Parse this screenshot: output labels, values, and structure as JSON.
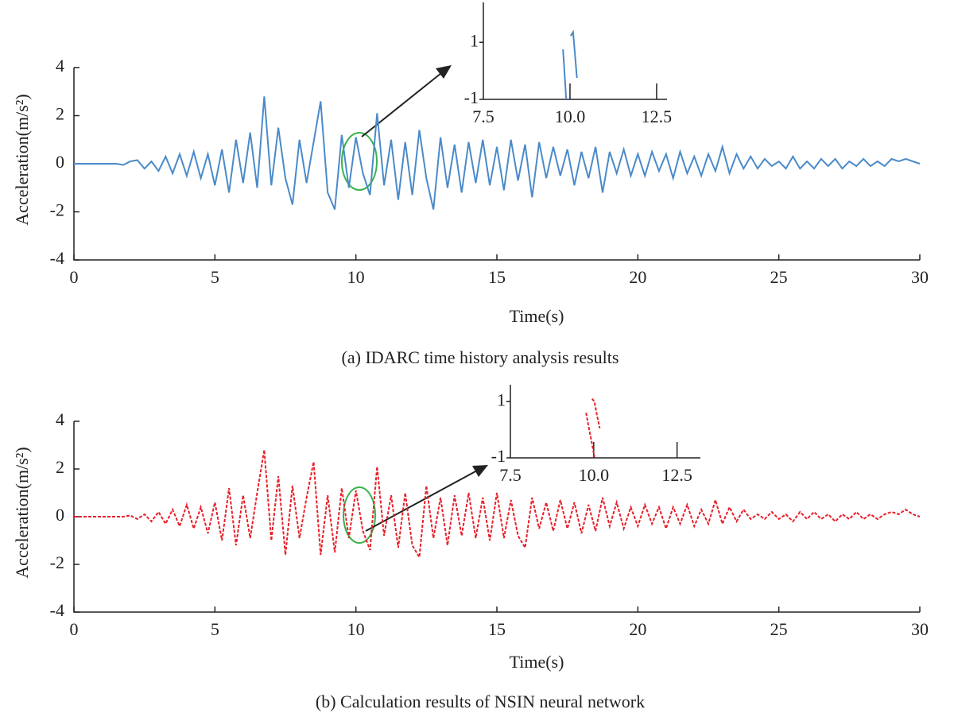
{
  "chart_data": [
    {
      "type": "line",
      "caption": "(a) IDARC time history analysis results",
      "xlabel": "Time(s)",
      "ylabel": "Acceleration(m/s²)",
      "color": "#4a8ac9",
      "line_style": "solid",
      "xlim": [
        0,
        30
      ],
      "ylim": [
        -4,
        4
      ],
      "xticks": [
        0,
        5,
        10,
        15,
        20,
        25,
        30
      ],
      "yticks": [
        4,
        2,
        0,
        -2,
        -4
      ],
      "x": [
        0,
        0.25,
        0.5,
        0.75,
        1,
        1.25,
        1.5,
        1.75,
        2,
        2.25,
        2.5,
        2.75,
        3,
        3.25,
        3.5,
        3.75,
        4,
        4.25,
        4.5,
        4.75,
        5,
        5.25,
        5.5,
        5.75,
        6,
        6.25,
        6.5,
        6.75,
        7,
        7.25,
        7.5,
        7.75,
        8,
        8.25,
        8.5,
        8.75,
        9,
        9.25,
        9.5,
        9.75,
        10,
        10.25,
        10.5,
        10.75,
        11,
        11.25,
        11.5,
        11.75,
        12,
        12.25,
        12.5,
        12.75,
        13,
        13.25,
        13.5,
        13.75,
        14,
        14.25,
        14.5,
        14.75,
        15,
        15.25,
        15.5,
        15.75,
        16,
        16.25,
        16.5,
        16.75,
        17,
        17.25,
        17.5,
        17.75,
        18,
        18.25,
        18.5,
        18.75,
        19,
        19.25,
        19.5,
        19.75,
        20,
        20.25,
        20.5,
        20.75,
        21,
        21.25,
        21.5,
        21.75,
        22,
        22.25,
        22.5,
        22.75,
        23,
        23.25,
        23.5,
        23.75,
        24,
        24.25,
        24.5,
        24.75,
        25,
        25.25,
        25.5,
        25.75,
        26,
        26.25,
        26.5,
        26.75,
        27,
        27.25,
        27.5,
        27.75,
        28,
        28.25,
        28.5,
        28.75,
        29,
        29.25,
        29.5,
        29.75,
        30
      ],
      "values": [
        0,
        0,
        0,
        0,
        0,
        0,
        0,
        -0.05,
        0.1,
        0.15,
        -0.2,
        0.1,
        -0.3,
        0.3,
        -0.4,
        0.4,
        -0.5,
        0.5,
        -0.6,
        0.4,
        -0.9,
        0.6,
        -1.2,
        1.0,
        -0.8,
        1.3,
        -1.0,
        2.8,
        -0.9,
        1.5,
        -0.6,
        -1.7,
        1.0,
        -0.8,
        0.9,
        2.6,
        -1.2,
        -1.9,
        1.2,
        -1.0,
        1.1,
        -0.4,
        -1.3,
        2.1,
        -0.9,
        1.0,
        -1.5,
        0.9,
        -1.3,
        1.4,
        -0.6,
        -1.9,
        1.1,
        -1.0,
        0.8,
        -1.2,
        0.9,
        -0.8,
        1.0,
        -0.9,
        0.7,
        -1.1,
        1.0,
        -0.7,
        0.8,
        -1.4,
        0.9,
        -0.6,
        0.7,
        -0.5,
        0.6,
        -0.9,
        0.5,
        -0.6,
        0.7,
        -1.2,
        0.5,
        -0.4,
        0.6,
        -0.5,
        0.4,
        -0.5,
        0.5,
        -0.3,
        0.4,
        -0.6,
        0.5,
        -0.4,
        0.3,
        -0.5,
        0.4,
        -0.3,
        0.7,
        -0.4,
        0.4,
        -0.2,
        0.3,
        -0.2,
        0.2,
        -0.1,
        0.1,
        -0.2,
        0.3,
        -0.2,
        0.1,
        -0.2,
        0.2,
        -0.1,
        0.2,
        -0.2,
        0.1,
        -0.1,
        0.2,
        -0.1,
        0.1,
        -0.1,
        0.2,
        0.1,
        0.2,
        0.1,
        0
      ]
    },
    {
      "type": "line",
      "color": "#4a8ac9",
      "line_style": "solid",
      "xlim": [
        7.5,
        12.8
      ],
      "ylim": [
        -1,
        2.4
      ],
      "xticks": [
        7.5,
        {
          "value": 10,
          "label": "10.0"
        },
        12.5
      ],
      "yticks": [
        1,
        -1
      ],
      "x": [
        9.8,
        9.89,
        null,
        10.02,
        10.09,
        10.2
      ],
      "values": [
        0.75,
        -1,
        null,
        1.22,
        1.36,
        -0.25
      ]
    },
    {
      "type": "line",
      "caption": "(b) Calculation results of NSIN neural network",
      "xlabel": "Time(s)",
      "ylabel": "Acceleration(m/s²)",
      "color": "#e8202a",
      "line_style": "dashed",
      "xlim": [
        0,
        30
      ],
      "ylim": [
        -4,
        4
      ],
      "xticks": [
        0,
        5,
        10,
        15,
        20,
        25,
        30
      ],
      "yticks": [
        4,
        2,
        0,
        -2,
        -4
      ],
      "x": [
        0,
        0.25,
        0.5,
        0.75,
        1,
        1.25,
        1.5,
        1.75,
        2,
        2.25,
        2.5,
        2.75,
        3,
        3.25,
        3.5,
        3.75,
        4,
        4.25,
        4.5,
        4.75,
        5,
        5.25,
        5.5,
        5.75,
        6,
        6.25,
        6.5,
        6.75,
        7,
        7.25,
        7.5,
        7.75,
        8,
        8.25,
        8.5,
        8.75,
        9,
        9.25,
        9.5,
        9.75,
        10,
        10.25,
        10.5,
        10.75,
        11,
        11.25,
        11.5,
        11.75,
        12,
        12.25,
        12.5,
        12.75,
        13,
        13.25,
        13.5,
        13.75,
        14,
        14.25,
        14.5,
        14.75,
        15,
        15.25,
        15.5,
        15.75,
        16,
        16.25,
        16.5,
        16.75,
        17,
        17.25,
        17.5,
        17.75,
        18,
        18.25,
        18.5,
        18.75,
        19,
        19.25,
        19.5,
        19.75,
        20,
        20.25,
        20.5,
        20.75,
        21,
        21.25,
        21.5,
        21.75,
        22,
        22.25,
        22.5,
        22.75,
        23,
        23.25,
        23.5,
        23.75,
        24,
        24.25,
        24.5,
        24.75,
        25,
        25.25,
        25.5,
        25.75,
        26,
        26.25,
        26.5,
        26.75,
        27,
        27.25,
        27.5,
        27.75,
        28,
        28.25,
        28.5,
        28.75,
        29,
        29.25,
        29.5,
        29.75,
        30
      ],
      "values": [
        0,
        0,
        0,
        0,
        0,
        0,
        0,
        0,
        0.05,
        -0.1,
        0.1,
        -0.2,
        0.2,
        -0.3,
        0.3,
        -0.4,
        0.5,
        -0.5,
        0.4,
        -0.7,
        0.6,
        -1.0,
        1.2,
        -1.2,
        0.9,
        -0.9,
        1.0,
        2.8,
        -1.0,
        1.7,
        -1.6,
        1.3,
        -0.9,
        0.8,
        2.3,
        -1.6,
        0.9,
        -1.5,
        1.2,
        -0.9,
        1.1,
        -0.6,
        -1.4,
        2.1,
        -0.8,
        0.9,
        -1.3,
        1.0,
        -1.2,
        -1.7,
        1.3,
        -0.9,
        0.8,
        -1.2,
        0.9,
        -0.8,
        1.0,
        -0.9,
        0.8,
        -1.0,
        1.0,
        -0.9,
        0.7,
        -0.8,
        -1.3,
        0.8,
        -0.5,
        0.6,
        -0.6,
        0.7,
        -0.5,
        0.6,
        -0.7,
        0.5,
        -0.6,
        0.8,
        -0.4,
        0.6,
        -0.5,
        0.4,
        -0.4,
        0.5,
        -0.3,
        0.4,
        -0.5,
        0.4,
        -0.3,
        0.5,
        -0.4,
        0.3,
        -0.3,
        0.7,
        -0.3,
        0.4,
        -0.2,
        0.3,
        -0.1,
        0.1,
        -0.1,
        0.2,
        -0.1,
        0.1,
        -0.2,
        0.2,
        -0.1,
        0.2,
        -0.1,
        0.1,
        -0.2,
        0.1,
        -0.1,
        0.2,
        -0.1,
        0.1,
        -0.1,
        0.1,
        0.2,
        0.1,
        0.3,
        0.1,
        0
      ]
    },
    {
      "type": "line",
      "color": "#e8202a",
      "line_style": "dashed",
      "xlim": [
        7.5,
        13.2
      ],
      "ylim": [
        -1,
        1.6
      ],
      "xticks": [
        7.5,
        {
          "value": 10,
          "label": "10.0"
        },
        12.5
      ],
      "yticks": [
        1,
        -1
      ],
      "x": [
        9.77,
        9.85,
        9.95,
        10.02,
        null,
        9.95,
        10.02,
        10.1,
        10.18
      ],
      "values": [
        0.6,
        0.1,
        -0.5,
        -0.97,
        null,
        1.1,
        1.0,
        0.5,
        0.05
      ]
    }
  ]
}
